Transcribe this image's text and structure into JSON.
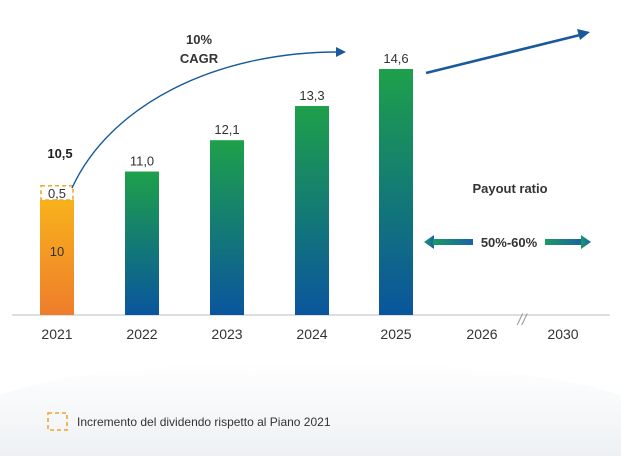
{
  "chart_data": {
    "type": "bar",
    "categories": [
      "2021",
      "2022",
      "2023",
      "2024",
      "2025",
      "2026",
      "2030"
    ],
    "values": [
      10.5,
      11.0,
      12.1,
      13.3,
      14.6,
      null,
      null
    ],
    "value_labels": [
      "10,5",
      "11,0",
      "12,1",
      "13,3",
      "14,6",
      "",
      ""
    ],
    "stack_2021": {
      "base_value": 10,
      "base_label": "10",
      "increment_value": 0.5,
      "increment_label": "0,5"
    },
    "ylim": [
      0,
      15
    ],
    "cagr_label_line1": "10%",
    "cagr_label_line2": "CAGR",
    "payout_title": "Payout ratio",
    "payout_range": "50%-60%",
    "legend_label": "Incremento del dividendo rispetto al Piano 2021",
    "axis_break": "//",
    "colors": {
      "bar_top": "#1ea04a",
      "bar_bottom": "#0a559e",
      "bar2021_top": "#f8b21c",
      "bar2021_bottom": "#ee7d2b",
      "legend_box": "#f1a62d",
      "arrow": "#185a9a",
      "payout_green": "#1a9a63",
      "payout_blue": "#1b62a8",
      "text": "#1f1f1f"
    }
  }
}
